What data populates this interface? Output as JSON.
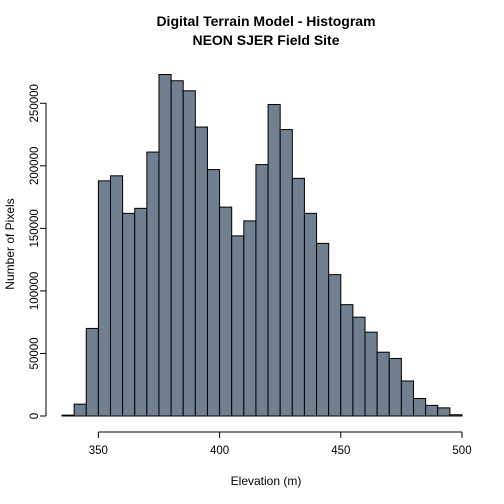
{
  "chart_data": {
    "type": "bar",
    "title": "Digital Terrain Model - Histogram",
    "subtitle": "NEON SJER Field Site",
    "xlabel": "Elevation (m)",
    "ylabel": "Number of Pixels",
    "bar_color": "#708090",
    "border_color": "#000000",
    "xlim": [
      335,
      500
    ],
    "ylim": [
      0,
      275000
    ],
    "bin_width": 5,
    "x_ticks": [
      350,
      400,
      450,
      500
    ],
    "x_tick_labels": [
      "350",
      "400",
      "450",
      "500"
    ],
    "y_ticks": [
      0,
      50000,
      100000,
      150000,
      200000,
      250000
    ],
    "y_tick_labels": [
      "0",
      "50000",
      "100000",
      "150000",
      "200000",
      "250000"
    ],
    "bins": [
      {
        "start": 335,
        "end": 340,
        "value": 700
      },
      {
        "start": 340,
        "end": 345,
        "value": 9500
      },
      {
        "start": 345,
        "end": 350,
        "value": 70000
      },
      {
        "start": 350,
        "end": 355,
        "value": 188000
      },
      {
        "start": 355,
        "end": 360,
        "value": 192000
      },
      {
        "start": 360,
        "end": 365,
        "value": 162000
      },
      {
        "start": 365,
        "end": 370,
        "value": 166000
      },
      {
        "start": 370,
        "end": 375,
        "value": 211000
      },
      {
        "start": 375,
        "end": 380,
        "value": 273000
      },
      {
        "start": 380,
        "end": 385,
        "value": 268000
      },
      {
        "start": 385,
        "end": 390,
        "value": 260000
      },
      {
        "start": 390,
        "end": 395,
        "value": 231000
      },
      {
        "start": 395,
        "end": 400,
        "value": 197000
      },
      {
        "start": 400,
        "end": 405,
        "value": 167000
      },
      {
        "start": 405,
        "end": 410,
        "value": 144000
      },
      {
        "start": 410,
        "end": 415,
        "value": 156000
      },
      {
        "start": 415,
        "end": 420,
        "value": 201000
      },
      {
        "start": 420,
        "end": 425,
        "value": 249000
      },
      {
        "start": 425,
        "end": 430,
        "value": 229000
      },
      {
        "start": 430,
        "end": 435,
        "value": 190000
      },
      {
        "start": 435,
        "end": 440,
        "value": 162000
      },
      {
        "start": 440,
        "end": 445,
        "value": 138000
      },
      {
        "start": 445,
        "end": 450,
        "value": 113000
      },
      {
        "start": 450,
        "end": 455,
        "value": 89000
      },
      {
        "start": 455,
        "end": 460,
        "value": 79000
      },
      {
        "start": 460,
        "end": 465,
        "value": 67000
      },
      {
        "start": 465,
        "end": 470,
        "value": 51000
      },
      {
        "start": 470,
        "end": 475,
        "value": 46000
      },
      {
        "start": 475,
        "end": 480,
        "value": 28000
      },
      {
        "start": 480,
        "end": 485,
        "value": 14000
      },
      {
        "start": 485,
        "end": 490,
        "value": 8500
      },
      {
        "start": 490,
        "end": 495,
        "value": 6500
      },
      {
        "start": 495,
        "end": 500,
        "value": 1000
      }
    ]
  }
}
